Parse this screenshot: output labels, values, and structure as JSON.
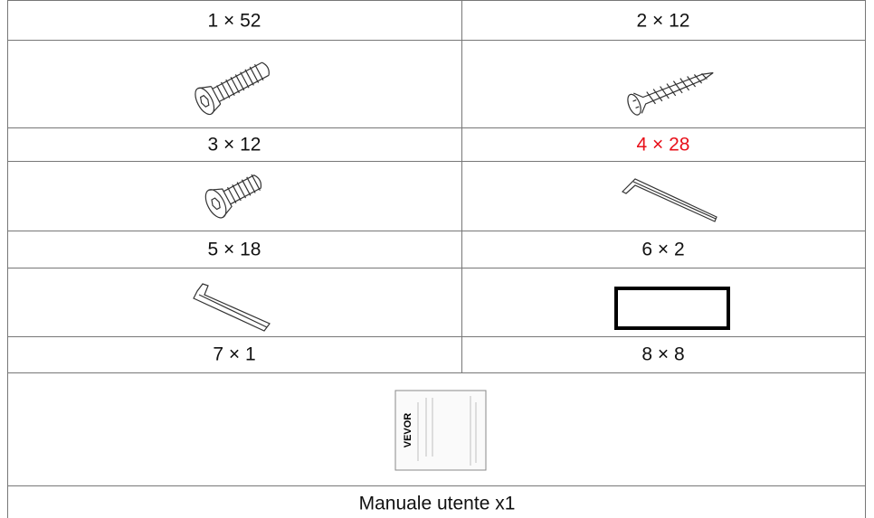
{
  "table": {
    "rows": [
      [
        "1 × 52",
        "2 × 12"
      ],
      [
        "3 × 12",
        "4 × 28"
      ],
      [
        "5 × 18",
        "6 × 2"
      ],
      [
        "7 × 1",
        "8 × 8"
      ]
    ],
    "footer": "Manuale utente x1"
  },
  "manual_cover": {
    "brand": "VEVOR"
  }
}
